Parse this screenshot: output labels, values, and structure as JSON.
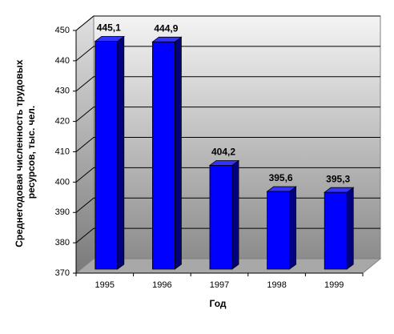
{
  "chart_data": {
    "type": "bar3d",
    "ylabel": [
      "Среднегодовая численность трудовых",
      "ресурсов, тыс. чел."
    ],
    "xlabel": "Год",
    "categories": [
      "1995",
      "1996",
      "1997",
      "1998",
      "1999"
    ],
    "values": [
      445.1,
      444.9,
      404.2,
      395.6,
      395.3
    ],
    "value_labels": [
      "445,1",
      "444,9",
      "404,2",
      "395,6",
      "395,3"
    ],
    "color": "#0000ff",
    "ylim": [
      370,
      450
    ],
    "yticks": [
      370,
      380,
      390,
      400,
      410,
      420,
      430,
      440,
      450
    ],
    "grid": true
  }
}
